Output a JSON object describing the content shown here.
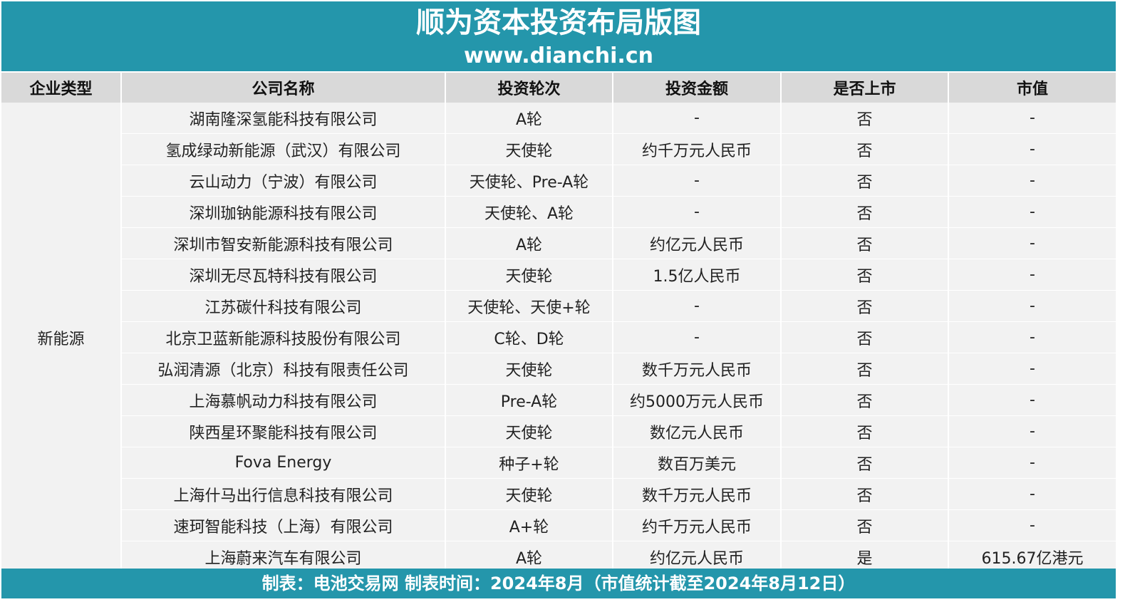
{
  "header": {
    "title": "顺为资本投资布局版图",
    "site": "www.dianchi.cn"
  },
  "table": {
    "columns": [
      "企业类型",
      "公司名称",
      "投资轮次",
      "投资金额",
      "是否上市",
      "市值"
    ],
    "category": "新能源",
    "rows": [
      {
        "company": "湖南隆深氢能科技有限公司",
        "round": "A轮",
        "amount": "-",
        "listed": "否",
        "market_cap": "-"
      },
      {
        "company": "氢成绿动新能源（武汉）有限公司",
        "round": "天使轮",
        "amount": "约千万元人民币",
        "listed": "否",
        "market_cap": "-"
      },
      {
        "company": "云山动力（宁波）有限公司",
        "round": "天使轮、Pre-A轮",
        "amount": "-",
        "listed": "否",
        "market_cap": "-"
      },
      {
        "company": "深圳珈钠能源科技有限公司",
        "round": "天使轮、A轮",
        "amount": "-",
        "listed": "否",
        "market_cap": "-"
      },
      {
        "company": "深圳市智安新能源科技有限公司",
        "round": "A轮",
        "amount": "约亿元人民币",
        "listed": "否",
        "market_cap": "-"
      },
      {
        "company": "深圳无尽瓦特科技有限公司",
        "round": "天使轮",
        "amount": "1.5亿人民币",
        "listed": "否",
        "market_cap": "-"
      },
      {
        "company": "江苏碳什科技有限公司",
        "round": "天使轮、天使+轮",
        "amount": "-",
        "listed": "否",
        "market_cap": "-"
      },
      {
        "company": "北京卫蓝新能源科技股份有限公司",
        "round": "C轮、D轮",
        "amount": "-",
        "listed": "否",
        "market_cap": "-"
      },
      {
        "company": "弘润清源（北京）科技有限责任公司",
        "round": "天使轮",
        "amount": "数千万元人民币",
        "listed": "否",
        "market_cap": "-"
      },
      {
        "company": "上海慕帆动力科技有限公司",
        "round": "Pre-A轮",
        "amount": "约5000万元人民币",
        "listed": "否",
        "market_cap": "-"
      },
      {
        "company": "陕西星环聚能科技有限公司",
        "round": "天使轮",
        "amount": "数亿元人民币",
        "listed": "否",
        "market_cap": "-"
      },
      {
        "company": "Fova Energy",
        "round": "种子+轮",
        "amount": "数百万美元",
        "listed": "否",
        "market_cap": "-"
      },
      {
        "company": "上海什马出行信息科技有限公司",
        "round": "天使轮",
        "amount": "数千万元人民币",
        "listed": "否",
        "market_cap": "-"
      },
      {
        "company": "速珂智能科技（上海）有限公司",
        "round": "A+轮",
        "amount": "约千万元人民币",
        "listed": "否",
        "market_cap": "-"
      },
      {
        "company": "上海蔚来汽车有限公司",
        "round": "A轮",
        "amount": "约亿元人民币",
        "listed": "是",
        "market_cap": "615.67亿港元"
      }
    ]
  },
  "footer": {
    "text": "制表：电池交易网  制表时间：2024年8月（市值统计截至2024年8月12日）"
  },
  "colors": {
    "banner": "#2496ab",
    "header_row": "#d9d9d9",
    "body_row": "#f2f2f2"
  }
}
